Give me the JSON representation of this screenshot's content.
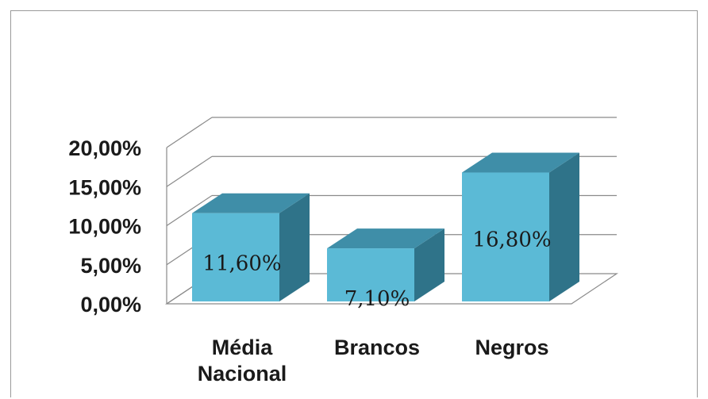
{
  "chart_data": {
    "type": "bar",
    "categories": [
      [
        "Média",
        "Nacional"
      ],
      [
        "Brancos"
      ],
      [
        "Negros"
      ]
    ],
    "values": [
      11.6,
      7.1,
      16.8
    ],
    "data_labels": [
      "11,60%",
      "7,10%",
      "16,80%"
    ],
    "yticks": [
      "0,00%",
      "5,00%",
      "10,00%",
      "15,00%",
      "20,00%"
    ],
    "ylim": [
      0,
      20
    ],
    "style": "3d-column",
    "grid": true,
    "legend": "none",
    "colors": {
      "bar_front": "#5bbad6",
      "bar_top": "#3f8ea8",
      "bar_side": "#2f7389",
      "grid": "#8a8a8a"
    }
  }
}
